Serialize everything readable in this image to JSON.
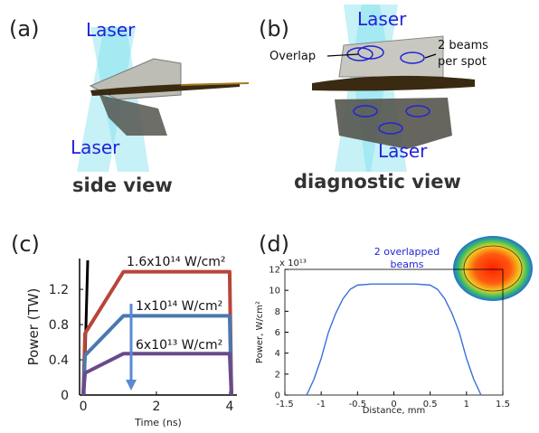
{
  "panels": {
    "a": {
      "label": "(a)",
      "lasers": [
        "Laser",
        "Laser"
      ],
      "caption": "side view"
    },
    "b": {
      "label": "(b)",
      "lasers": [
        "Laser",
        "Laser"
      ],
      "overlap": "Overlap",
      "beams_note": [
        "2 beams",
        "per spot"
      ],
      "caption": "diagnostic view"
    }
  },
  "chart_data": [
    {
      "type": "line",
      "panel_label": "(c)",
      "x_label": "Time (ns)",
      "y_label": "Power (TW)",
      "x": [
        0,
        0.05,
        1.1,
        4.0,
        4.05
      ],
      "series": [
        {
          "name": "1.6x10¹⁴ W/cm²",
          "color": "#b8453a",
          "values": [
            0,
            0.7,
            1.4,
            1.4,
            0
          ]
        },
        {
          "name": "1x10¹⁴ W/cm²",
          "color": "#4a78b0",
          "values": [
            0,
            0.45,
            0.9,
            0.9,
            0
          ]
        },
        {
          "name": "6x10¹³ W/cm²",
          "color": "#6a4a8a",
          "values": [
            0,
            0.25,
            0.47,
            0.47,
            0
          ]
        }
      ],
      "xlim": [
        -0.1,
        4.2
      ],
      "xticks": [
        0,
        2,
        4
      ],
      "ylim": [
        0,
        1.55
      ],
      "yticks": [
        0,
        0.4,
        0.8,
        1.2
      ]
    },
    {
      "type": "line",
      "panel_label": "(d)",
      "x_label": "Distance, mm",
      "y_label": "Power, W/cm²",
      "y_multiplier": "x 10¹³",
      "annotation": [
        "2 overlapped",
        "beams"
      ],
      "x": [
        -1.2,
        -1.1,
        -1.0,
        -0.9,
        -0.8,
        -0.7,
        -0.6,
        -0.5,
        -0.3,
        0,
        0.3,
        0.5,
        0.6,
        0.7,
        0.8,
        0.9,
        1.0,
        1.1,
        1.2
      ],
      "series": [
        {
          "color": "#3a6fd8",
          "values": [
            0,
            1.5,
            3.5,
            6,
            7.8,
            9.2,
            10.1,
            10.5,
            10.6,
            10.6,
            10.6,
            10.5,
            10.1,
            9.2,
            7.8,
            6,
            3.5,
            1.5,
            0
          ]
        }
      ],
      "xlim": [
        -1.5,
        1.5
      ],
      "xticks": [
        -1.5,
        -1,
        -0.5,
        0,
        0.5,
        1,
        1.5
      ],
      "ylim": [
        0,
        12
      ],
      "yticks": [
        0,
        2,
        4,
        6,
        8,
        10,
        12
      ]
    }
  ]
}
